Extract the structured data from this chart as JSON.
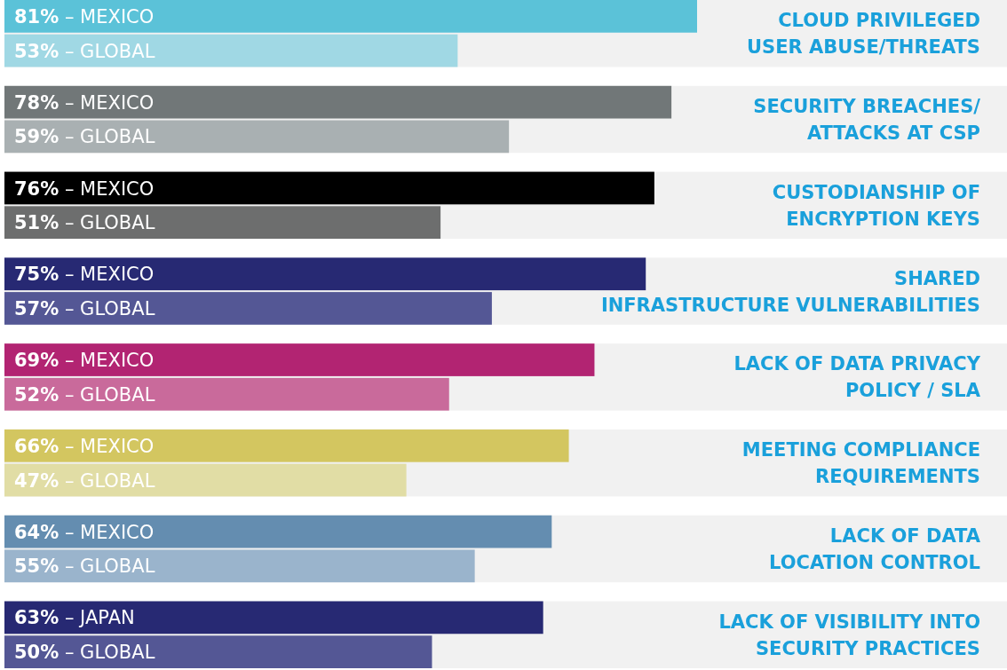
{
  "chart_data": {
    "type": "bar",
    "orientation": "horizontal",
    "categories": [
      "CLOUD PRIVILEGED\nUSER ABUSE/THREATS",
      "SECURITY BREACHES/\nATTACKS AT CSP",
      "CUSTODIANSHIP OF\nENCRYPTION KEYS",
      "SHARED\nINFRASTRUCTURE VULNERABILITIES",
      "LACK OF DATA PRIVACY\nPOLICY / SLA",
      "MEETING COMPLIANCE\nREQUIREMENTS",
      "LACK OF DATA\nLOCATION CONTROL",
      "LACK OF VISIBILITY INTO\nSECURITY PRACTICES"
    ],
    "series": [
      {
        "values": [
          81,
          78,
          76,
          75,
          69,
          66,
          64,
          63
        ],
        "colors": [
          "#5bc2d8",
          "#717778",
          "#000000",
          "#272973",
          "#b22472",
          "#d3c660",
          "#648db0",
          "#272973"
        ],
        "value_labels": [
          "81% – MEXICO",
          "78% – MEXICO",
          "76% – MEXICO",
          "75% – MEXICO",
          "69% – MEXICO",
          "66% – MEXICO",
          "64% – MEXICO",
          "63% – JAPAN"
        ]
      },
      {
        "values": [
          53,
          59,
          51,
          57,
          52,
          47,
          55,
          50
        ],
        "colors": [
          "#a0d8e4",
          "#a9b0b2",
          "#6d6e6e",
          "#545795",
          "#c96a9b",
          "#e1dda5",
          "#9ab4cc",
          "#545795"
        ],
        "value_labels": [
          "53% – GLOBAL",
          "59% – GLOBAL",
          "51% – GLOBAL",
          "57% – GLOBAL",
          "52% – GLOBAL",
          "47% – GLOBAL",
          "55% – GLOBAL",
          "50% – GLOBAL"
        ]
      }
    ]
  }
}
